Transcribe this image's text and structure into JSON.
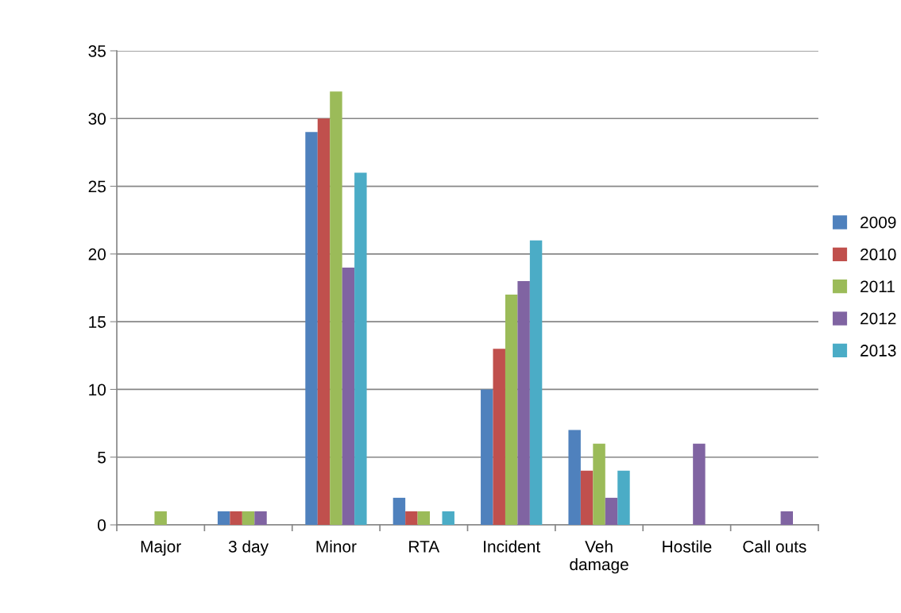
{
  "chart_data": {
    "type": "bar",
    "categories": [
      "Major",
      "3 day",
      "Minor",
      "RTA",
      "Incident",
      "Veh\ndamage",
      "Hostile",
      "Call outs"
    ],
    "series": [
      {
        "name": "2009",
        "color": "#4f81bd",
        "values": [
          0,
          1,
          29,
          2,
          10,
          7,
          0,
          0
        ]
      },
      {
        "name": "2010",
        "color": "#c0504d",
        "values": [
          0,
          1,
          30,
          1,
          13,
          4,
          0,
          0
        ]
      },
      {
        "name": "2011",
        "color": "#9bbb59",
        "values": [
          1,
          1,
          32,
          1,
          17,
          6,
          0,
          0
        ]
      },
      {
        "name": "2012",
        "color": "#8064a2",
        "values": [
          0,
          1,
          19,
          0,
          18,
          2,
          6,
          1
        ]
      },
      {
        "name": "2013",
        "color": "#4bacc6",
        "values": [
          0,
          0,
          26,
          1,
          21,
          4,
          0,
          0
        ]
      }
    ],
    "ylim": [
      0,
      35
    ],
    "yticks": [
      0,
      5,
      10,
      15,
      20,
      25,
      30,
      35
    ],
    "grid": "y",
    "legend": "right"
  }
}
